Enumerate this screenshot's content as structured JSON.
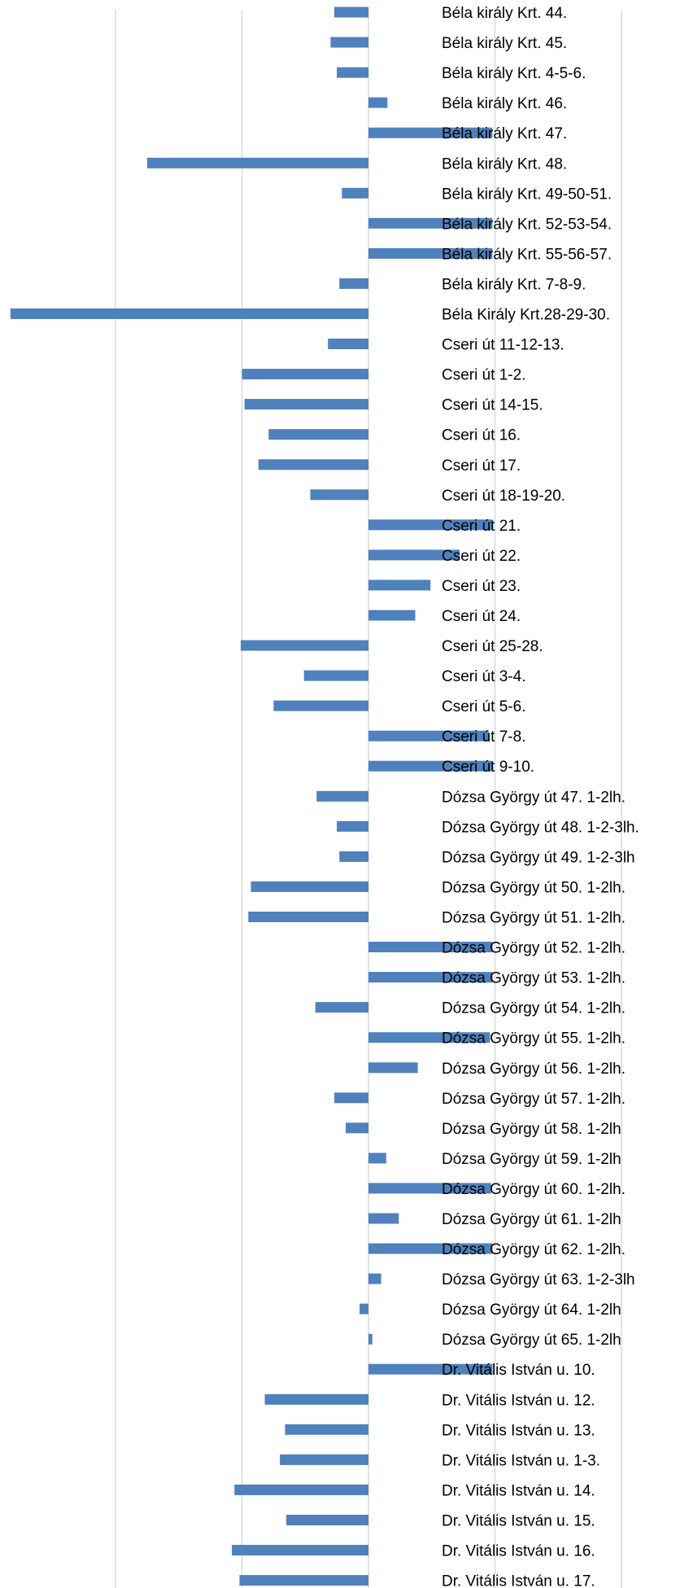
{
  "chart_data": {
    "type": "bar",
    "orientation": "horizontal",
    "grid": true,
    "legend": "none",
    "xlim": [
      -28,
      25
    ],
    "gridlines_x": [
      -20,
      -10,
      0,
      10,
      20
    ],
    "colors": {
      "bar": "#4f81bd",
      "grid": "#d9d9d9",
      "text": "#000000",
      "background": "#ffffff"
    },
    "categories": [
      "Béla király Krt. 44.",
      "Béla király Krt. 45.",
      "Béla király Krt. 4-5-6.",
      "Béla király Krt. 46.",
      "Béla király Krt. 47.",
      "Béla király Krt. 48.",
      "Béla király Krt. 49-50-51.",
      "Béla király Krt. 52-53-54.",
      "Béla király Krt. 55-56-57.",
      "Béla király Krt. 7-8-9.",
      "Béla Király Krt.28-29-30.",
      "Cseri út 11-12-13.",
      "Cseri út 1-2.",
      "Cseri út 14-15.",
      "Cseri út 16.",
      "Cseri út 17.",
      "Cseri út 18-19-20.",
      "Cseri út 21.",
      "Cseri út 22.",
      "Cseri út 23.",
      "Cseri út 24.",
      "Cseri út 25-28.",
      "Cseri út 3-4.",
      "Cseri út 5-6.",
      "Cseri út 7-8.",
      "Cseri út 9-10.",
      "Dózsa György út 47. 1-2lh.",
      "Dózsa György út 48. 1-2-3lh.",
      "Dózsa György út 49. 1-2-3lh",
      "Dózsa György út 50. 1-2lh.",
      "Dózsa György út 51. 1-2lh.",
      "Dózsa György út 52. 1-2lh.",
      "Dózsa György út 53. 1-2lh.",
      "Dózsa György út 54. 1-2lh.",
      "Dózsa György út 55. 1-2lh.",
      "Dózsa György út 56. 1-2lh.",
      "Dózsa György út 57. 1-2lh.",
      "Dózsa György út 58. 1-2lh",
      "Dózsa György út 59. 1-2lh",
      "Dózsa György út 60. 1-2lh.",
      "Dózsa György út 61. 1-2lh",
      "Dózsa György út 62. 1-2lh.",
      "Dózsa György út 63. 1-2-3lh",
      "Dózsa György út 64. 1-2lh",
      "Dózsa György út 65. 1-2lh",
      "Dr. Vitális István u. 10.",
      "Dr. Vitális István u. 12.",
      "Dr. Vitális István u. 13.",
      "Dr. Vitális István u. 1-3.",
      "Dr. Vitális István u. 14.",
      "Dr. Vitális István u. 15.",
      "Dr. Vitális István u. 16.",
      "Dr. Vitális István u. 17."
    ],
    "values": [
      -2.7,
      -3.0,
      -2.5,
      1.5,
      9.8,
      -17.5,
      -2.1,
      9.8,
      9.8,
      -2.3,
      -28.3,
      -3.2,
      -10.0,
      -9.8,
      -7.9,
      -8.7,
      -4.6,
      9.8,
      7.2,
      4.9,
      3.7,
      -10.1,
      -5.1,
      -7.5,
      9.5,
      9.8,
      -4.1,
      -2.5,
      -2.3,
      -9.3,
      -9.5,
      9.8,
      9.8,
      -4.2,
      9.6,
      3.9,
      -2.7,
      -1.8,
      1.4,
      9.7,
      2.4,
      9.8,
      1.0,
      -0.7,
      0.3,
      9.8,
      -8.2,
      -6.6,
      -7.0,
      -10.6,
      -6.5,
      -10.8,
      -10.2
    ]
  }
}
